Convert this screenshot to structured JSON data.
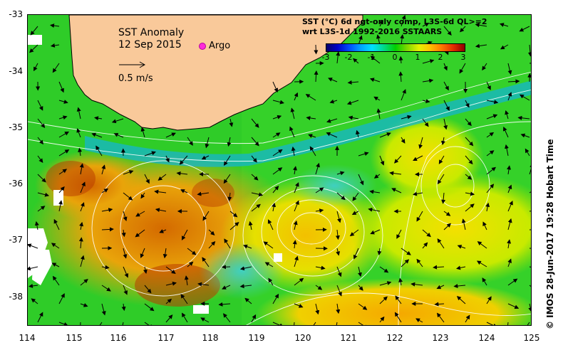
{
  "title": {
    "line1": "SST Anomaly",
    "line2": "12 Sep 2015"
  },
  "argo_label": "Argo",
  "scale_label": "0.5 m/s",
  "colorbar": {
    "title_line1": "SST (°C) 6d ngt-only comp, L3S-6d QL>=2",
    "title_line2": "wrt L3S-1d 1992-2016 SSTAARS",
    "ticks": [
      "-3",
      "-2",
      "-1",
      "0",
      "1",
      "2",
      "3"
    ]
  },
  "axes": {
    "lat_labels": [
      "-33",
      "-34",
      "-35",
      "-36",
      "-37",
      "-38"
    ],
    "lon_labels": [
      "114",
      "115",
      "116",
      "117",
      "118",
      "119",
      "120",
      "121",
      "122",
      "123",
      "124",
      "125"
    ]
  },
  "credit": "© IMOS 28-Jun-2017 19:28 Hobart Time",
  "colors": {
    "land": "#f9c99a",
    "argo": "#ff2bd9"
  }
}
